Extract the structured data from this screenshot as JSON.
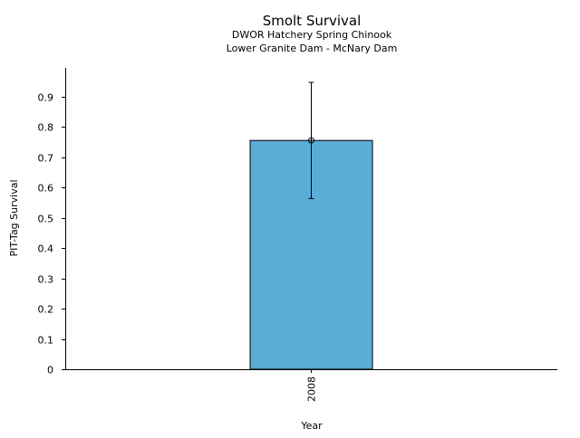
{
  "chart_data": {
    "type": "bar",
    "title": "Smolt Survival",
    "subtitle_lines": [
      "DWOR Hatchery Spring Chinook",
      "Lower Granite Dam - McNary Dam"
    ],
    "xlabel": "Year",
    "ylabel": "PIT-Tag Survival",
    "categories": [
      "2008"
    ],
    "values": [
      0.756
    ],
    "error_low": [
      0.564
    ],
    "error_high": [
      0.948
    ],
    "ylim": [
      0,
      0.99
    ],
    "yticks": [
      0,
      0.1,
      0.2,
      0.3,
      0.4,
      0.5,
      0.6,
      0.7,
      0.8,
      0.9
    ],
    "ytick_labels": [
      "0",
      "0.1",
      "0.2",
      "0.3",
      "0.4",
      "0.5",
      "0.6",
      "0.7",
      "0.8",
      "0.9"
    ],
    "grid": false,
    "bar_color": "#5bacd7"
  }
}
